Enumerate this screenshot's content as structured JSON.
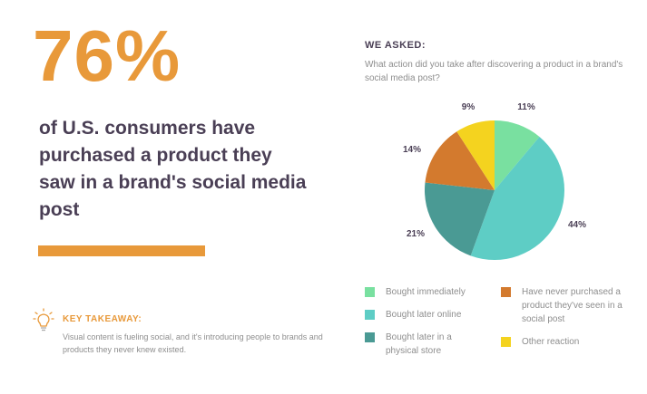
{
  "left": {
    "big_stat": "76%",
    "headline": "of U.S. consumers have purchased a product they saw in a brand's social media post",
    "takeaway_title": "KEY TAKEAWAY:",
    "takeaway_text": "Visual content is fueling social, and it's introducing people to brands and products they never knew existed.",
    "takeaway_icon": "lightbulb-icon"
  },
  "right": {
    "asked_title": "WE ASKED:",
    "question": "What action did you take after discovering a product in a brand's social media post?"
  },
  "colors": {
    "accent": "#e8993a",
    "heading": "#4a3f55",
    "muted": "#8e8e8e"
  },
  "chart_data": {
    "type": "pie",
    "title": "What action did you take after discovering a product in a brand's social media post?",
    "categories": [
      "Bought immediately",
      "Bought later online",
      "Bought later in a physical store",
      "Have never purchased a product they've seen in a social post",
      "Other reaction"
    ],
    "values": [
      11,
      44,
      21,
      14,
      9
    ],
    "value_labels": [
      "11%",
      "44%",
      "21%",
      "14%",
      "9%"
    ],
    "colors": [
      "#79e0a0",
      "#5ecdc5",
      "#4a9a94",
      "#d37a2e",
      "#f4d31f"
    ],
    "legend_position": "bottom"
  },
  "legend": [
    {
      "label": "Bought immediately",
      "color": "#79e0a0"
    },
    {
      "label": "Bought later online",
      "color": "#5ecdc5"
    },
    {
      "label": "Bought later in a physical store",
      "color": "#4a9a94"
    },
    {
      "label": "Have never purchased a product they've seen in a social post",
      "color": "#d37a2e"
    },
    {
      "label": "Other reaction",
      "color": "#f4d31f"
    }
  ]
}
